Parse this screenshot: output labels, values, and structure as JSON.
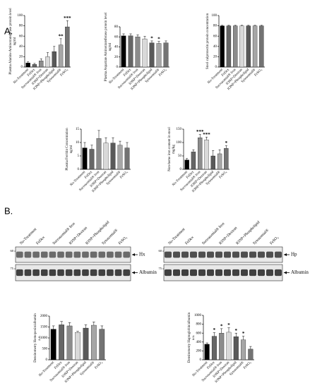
{
  "panel_labels": [
    "A.",
    "B."
  ],
  "blots": [
    {
      "lanes": [
        "No-Treatment",
        "FeDex",
        "Sucrosomial® Iron",
        "IONP+Dextran",
        "IONP+Phospholipid",
        "Sytosomial®",
        "FeSO₄"
      ],
      "markers": [
        60,
        75
      ],
      "bands": [
        "Hx",
        "Albumin"
      ]
    },
    {
      "lanes": [
        "No-Treatment",
        "FeDex",
        "Sucrosomial® Iron",
        "IONP+Dextran",
        "IONP+Phospholipid",
        "Sytosomial®",
        "FeSO₄"
      ],
      "markers": [
        60,
        75
      ],
      "bands": [
        "Hp",
        "Albumin"
      ]
    }
  ],
  "chart_data": [
    {
      "type": "bar",
      "y_label": "Plasma Alanine Aminotransferase protein level",
      "y_unit": "ng/ml",
      "categories": [
        "No-Treatment",
        "FeDex",
        "Sucrosomial® Iron",
        "IONP+Dextran",
        "IONP+Phospholipid",
        "Sytosomial®",
        "FeSO₄"
      ],
      "values": [
        8,
        5,
        12,
        20,
        30,
        43,
        78
      ],
      "errors": [
        2,
        2,
        4,
        8,
        10,
        12,
        12
      ],
      "significance": [
        null,
        null,
        null,
        null,
        null,
        "**",
        "***"
      ],
      "colors": [
        "#000000",
        "#666666",
        "#8c8c8c",
        "#d9d9d9",
        "#595959",
        "#a6a6a6",
        "#737373"
      ],
      "ylim": [
        0,
        100
      ],
      "yticks": [
        0,
        20,
        40,
        60,
        80,
        100
      ]
    },
    {
      "type": "bar",
      "y_label": "Plasma Aspartate Aminotransferase protein level",
      "y_unit": "ng/ml",
      "categories": [
        "No-Treatment",
        "FeDex",
        "Sucrosomial® Iron",
        "IONP+Dextran",
        "IONP+Phospholipid",
        "Sytosomial®",
        "FeSO₄"
      ],
      "values": [
        62,
        62,
        60,
        56,
        48,
        47,
        48
      ],
      "errors": [
        4,
        4,
        4,
        5,
        4,
        4,
        4
      ],
      "significance": [
        null,
        null,
        null,
        null,
        "*",
        "*",
        null
      ],
      "colors": [
        "#000000",
        "#666666",
        "#8c8c8c",
        "#d9d9d9",
        "#595959",
        "#a6a6a6",
        "#737373"
      ],
      "ylim": [
        0,
        80
      ],
      "yticks": [
        0,
        20,
        40,
        60,
        80
      ]
    },
    {
      "type": "bar",
      "y_label": "Stool calprotectin protein concentration",
      "categories": [
        "No-Treatment",
        "FeDex",
        "Sucrosomial® Iron",
        "IONP+Dextran",
        "IONP+Phospholipid",
        "Sytosomial®",
        "FeSO₄"
      ],
      "values": [
        80,
        80,
        80,
        80,
        80,
        80,
        80
      ],
      "errors": [
        1,
        1,
        1,
        1,
        1,
        1,
        1
      ],
      "significance": [
        null,
        null,
        null,
        null,
        null,
        null,
        null
      ],
      "colors": [
        "#000000",
        "#666666",
        "#8c8c8c",
        "#d9d9d9",
        "#595959",
        "#a6a6a6",
        "#737373"
      ],
      "ylim": [
        0,
        100
      ],
      "yticks": [
        0,
        20,
        40,
        60,
        80,
        100
      ]
    },
    {
      "type": "bar",
      "y_label": "Plasma Ferritin Concentration",
      "y_unit": "ng/ml",
      "categories": [
        "No-Treatment",
        "FeDex",
        "Sucrosomial® Iron",
        "IONP+Dextran",
        "IONP+Phospholipid",
        "Sytosomial®",
        "FeSO₄"
      ],
      "values": [
        8,
        7.5,
        11.5,
        9.8,
        9.8,
        9,
        8
      ],
      "errors": [
        2,
        1.5,
        3,
        2,
        2,
        1.5,
        2
      ],
      "significance": [
        null,
        null,
        null,
        null,
        null,
        null,
        null
      ],
      "colors": [
        "#000000",
        "#666666",
        "#8c8c8c",
        "#d9d9d9",
        "#595959",
        "#a6a6a6",
        "#737373"
      ],
      "ylim": [
        0,
        15
      ],
      "yticks": [
        0,
        5,
        10,
        15
      ]
    },
    {
      "type": "bar",
      "y_label": "Non-heme iron content in stool",
      "y_unit": "mg/kg",
      "categories": [
        "No-Treatment",
        "FeDex",
        "Sucrosomial® Iron",
        "IONP+Dextran",
        "IONP+Phospholipid",
        "Sytosomial®",
        "FeSO₄"
      ],
      "values": [
        35,
        65,
        118,
        110,
        50,
        58,
        78
      ],
      "errors": [
        5,
        8,
        12,
        10,
        20,
        15,
        10
      ],
      "significance": [
        null,
        null,
        "***",
        "***",
        null,
        null,
        "*"
      ],
      "colors": [
        "#000000",
        "#666666",
        "#8c8c8c",
        "#d9d9d9",
        "#595959",
        "#a6a6a6",
        "#737373"
      ],
      "ylim": [
        0,
        150
      ],
      "yticks": [
        0,
        50,
        100,
        150
      ]
    },
    {
      "type": "bar",
      "y_label": "Densitometry Hemopexin/albumin",
      "y_unit": "a.u.",
      "categories": [
        "No-Treatment",
        "FeDex",
        "Sucrosomial® Iron",
        "IONP+Dextran",
        "IONP+Phospholipid",
        "Sytosomial®",
        "FeSO₄"
      ],
      "values": [
        1400,
        1600,
        1550,
        1250,
        1450,
        1580,
        1400
      ],
      "errors": [
        150,
        150,
        150,
        50,
        150,
        150,
        150
      ],
      "significance": [
        null,
        null,
        null,
        null,
        null,
        null,
        null
      ],
      "colors": [
        "#000000",
        "#666666",
        "#8c8c8c",
        "#d9d9d9",
        "#595959",
        "#a6a6a6",
        "#737373"
      ],
      "ylim": [
        0,
        2000
      ],
      "yticks": [
        0,
        500,
        1000,
        1500,
        2000
      ]
    },
    {
      "type": "bar",
      "y_label": "Densitometry Haptoglobin/albumin",
      "y_unit": "a.u.",
      "categories": [
        "No-Treatment",
        "FeDex",
        "Sucrosomial® Iron",
        "IONP+Dextran",
        "IONP+Phospholipid",
        "Sytosomial®",
        "FeSO₄"
      ],
      "values": [
        350,
        530,
        600,
        620,
        520,
        450,
        240
      ],
      "errors": [
        30,
        80,
        100,
        100,
        80,
        80,
        60
      ],
      "significance": [
        null,
        "*",
        "*",
        "*",
        "*",
        "*",
        null
      ],
      "colors": [
        "#000000",
        "#666666",
        "#8c8c8c",
        "#d9d9d9",
        "#595959",
        "#a6a6a6",
        "#737373"
      ],
      "ylim": [
        0,
        1000
      ],
      "yticks": [
        0,
        200,
        400,
        600,
        800,
        1000
      ]
    }
  ]
}
